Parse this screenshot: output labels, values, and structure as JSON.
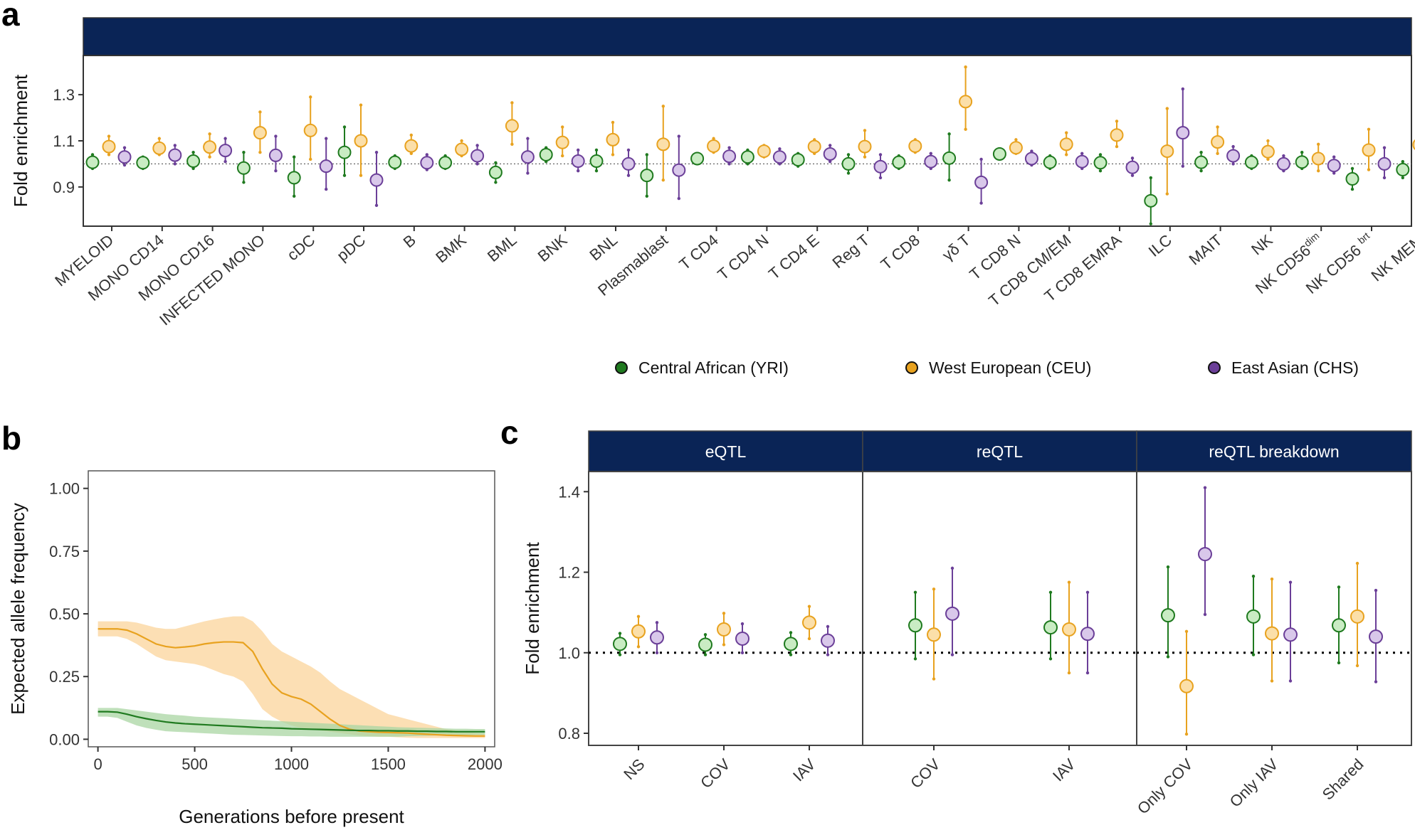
{
  "colors": {
    "YRI": "#1f7a1f",
    "YRI_fill": "#c9ecc3",
    "CEU": "#e8a21f",
    "CEU_fill": "#fbdfa9",
    "CHS": "#6b3f98",
    "CHS_fill": "#d9c8ea",
    "strip": "#0a2456",
    "band_ceu": "#fbd9a7",
    "band_yri": "#a9d6a3"
  },
  "panel_labels": {
    "a": "a",
    "b": "b",
    "c": "c"
  },
  "legend": [
    {
      "key": "YRI",
      "label": "Central African (YRI)"
    },
    {
      "key": "CEU",
      "label": "West European (CEU)"
    },
    {
      "key": "CHS",
      "label": "East Asian (CHS)"
    }
  ],
  "chart_data": [
    {
      "id": "a",
      "type": "scatter",
      "title": "",
      "xlabel": "",
      "ylabel": "Fold enrichment",
      "ylim": [
        0.73,
        1.47
      ],
      "yticks": [
        0.9,
        1.1,
        1.3
      ],
      "ytick_labels": [
        "0.9",
        "1.1",
        "1.3"
      ],
      "reference_line": 1.0,
      "categories": [
        {
          "label": "MYELOID"
        },
        {
          "label": "MONO CD14"
        },
        {
          "label": "MONO CD16"
        },
        {
          "label": "INFECTED MONO"
        },
        {
          "label": "cDC"
        },
        {
          "label": "pDC"
        },
        {
          "label": "B"
        },
        {
          "label": "BMK"
        },
        {
          "label": "BML"
        },
        {
          "label": "BNK"
        },
        {
          "label": "BNL"
        },
        {
          "label": "Plasmablast"
        },
        {
          "label": "T CD4"
        },
        {
          "label": "T CD4 N"
        },
        {
          "label": "T CD4 E"
        },
        {
          "label": "Reg T"
        },
        {
          "label": "T CD8"
        },
        {
          "label": "γδ T"
        },
        {
          "label": "T CD8 N"
        },
        {
          "label": "T CD8 CM/EM"
        },
        {
          "label": "T CD8 EMRA"
        },
        {
          "label": "ILC"
        },
        {
          "label": "MAIT"
        },
        {
          "label": "NK"
        },
        {
          "label": "NK CD56",
          "sup": "dim"
        },
        {
          "label": "NK CD56 ",
          "sup": "brt"
        },
        {
          "label": "NK MEM"
        }
      ],
      "series": [
        {
          "name": "Central African (YRI)",
          "key": "YRI",
          "values": [
            1.007,
            1.005,
            1.012,
            0.982,
            0.94,
            1.05,
            1.007,
            1.005,
            0.963,
            1.04,
            1.012,
            0.95,
            1.023,
            1.03,
            1.018,
            1.0,
            1.007,
            1.025,
            1.043,
            1.007,
            1.005,
            0.84,
            1.007,
            1.007,
            1.008,
            0.935,
            0.975
          ],
          "lower": [
            0.98,
            0.98,
            0.98,
            0.92,
            0.86,
            0.95,
            0.98,
            0.98,
            0.92,
            1.01,
            0.97,
            0.86,
            1.0,
            1.0,
            0.99,
            0.96,
            0.98,
            0.93,
            1.02,
            0.98,
            0.97,
            0.74,
            0.97,
            0.98,
            0.98,
            0.89,
            0.94
          ],
          "upper": [
            1.04,
            1.03,
            1.05,
            1.05,
            1.03,
            1.16,
            1.035,
            1.035,
            1.005,
            1.07,
            1.06,
            1.04,
            1.045,
            1.06,
            1.045,
            1.04,
            1.035,
            1.13,
            1.065,
            1.035,
            1.04,
            0.94,
            1.05,
            1.035,
            1.05,
            0.98,
            1.01
          ]
        },
        {
          "name": "West European (CEU)",
          "key": "CEU",
          "values": [
            1.075,
            1.068,
            1.073,
            1.135,
            1.145,
            1.1,
            1.078,
            1.063,
            1.165,
            1.093,
            1.105,
            1.085,
            1.077,
            1.055,
            1.075,
            1.075,
            1.077,
            1.27,
            1.07,
            1.085,
            1.125,
            1.055,
            1.095,
            1.053,
            1.023,
            1.06,
            1.083
          ],
          "lower": [
            1.04,
            1.04,
            1.03,
            1.05,
            1.02,
            0.95,
            1.045,
            1.035,
            1.085,
            1.035,
            1.04,
            0.93,
            1.05,
            1.03,
            1.045,
            1.03,
            1.05,
            1.15,
            1.045,
            1.04,
            1.075,
            0.87,
            1.045,
            1.02,
            0.97,
            0.975,
            1.03
          ],
          "upper": [
            1.12,
            1.11,
            1.13,
            1.225,
            1.29,
            1.255,
            1.125,
            1.1,
            1.265,
            1.16,
            1.18,
            1.25,
            1.11,
            1.08,
            1.105,
            1.145,
            1.105,
            1.42,
            1.105,
            1.135,
            1.185,
            1.24,
            1.16,
            1.1,
            1.085,
            1.15,
            1.15
          ]
        },
        {
          "name": "East Asian (CHS)",
          "key": "CHS",
          "values": [
            1.03,
            1.038,
            1.058,
            1.037,
            0.99,
            0.93,
            1.005,
            1.035,
            1.03,
            1.012,
            1.0,
            0.973,
            1.033,
            1.03,
            1.043,
            0.988,
            1.01,
            0.92,
            1.023,
            1.01,
            0.985,
            1.135,
            1.035,
            1.0,
            0.993,
            1.0,
            0.972
          ],
          "lower": [
            0.995,
            1.0,
            1.01,
            0.97,
            0.89,
            0.82,
            0.975,
            1.0,
            0.96,
            0.97,
            0.95,
            0.85,
            1.0,
            1.0,
            1.01,
            0.94,
            0.98,
            0.83,
            0.995,
            0.98,
            0.95,
            0.99,
            1.0,
            0.97,
            0.96,
            0.94,
            0.93
          ],
          "upper": [
            1.07,
            1.08,
            1.11,
            1.12,
            1.11,
            1.05,
            1.04,
            1.08,
            1.11,
            1.06,
            1.06,
            1.12,
            1.07,
            1.065,
            1.08,
            1.04,
            1.045,
            1.02,
            1.055,
            1.045,
            1.025,
            1.325,
            1.075,
            1.035,
            1.03,
            1.07,
            1.02
          ]
        }
      ]
    },
    {
      "id": "b",
      "type": "line",
      "title": "",
      "xlabel": "Generations before present",
      "ylabel": "Expected allele frequency",
      "xlim": [
        -50,
        2050
      ],
      "ylim": [
        -0.03,
        1.07
      ],
      "xticks": [
        0,
        500,
        1000,
        1500,
        2000
      ],
      "xtick_labels": [
        "0",
        "500",
        "1000",
        "1500",
        "2000"
      ],
      "yticks": [
        0,
        0.25,
        0.5,
        0.75,
        1.0
      ],
      "ytick_labels": [
        "0.00",
        "0.25",
        "0.50",
        "0.75",
        "1.00"
      ],
      "series": [
        {
          "name": "West European (CEU)",
          "key": "CEU",
          "x": [
            0,
            50,
            100,
            150,
            200,
            250,
            300,
            350,
            400,
            450,
            500,
            550,
            600,
            650,
            700,
            750,
            800,
            850,
            900,
            950,
            1000,
            1050,
            1100,
            1150,
            1200,
            1250,
            1300,
            1350,
            1400,
            1450,
            1500,
            1550,
            1600,
            1650,
            1700,
            1750,
            1800,
            1850,
            1900,
            1950,
            2000
          ],
          "values": [
            0.44,
            0.44,
            0.44,
            0.435,
            0.42,
            0.4,
            0.38,
            0.37,
            0.365,
            0.368,
            0.372,
            0.38,
            0.385,
            0.388,
            0.388,
            0.385,
            0.35,
            0.28,
            0.22,
            0.185,
            0.17,
            0.16,
            0.14,
            0.11,
            0.08,
            0.055,
            0.04,
            0.033,
            0.03,
            0.028,
            0.027,
            0.026,
            0.025,
            0.022,
            0.02,
            0.018,
            0.016,
            0.015,
            0.014,
            0.013,
            0.013
          ],
          "lower": [
            0.41,
            0.41,
            0.41,
            0.4,
            0.38,
            0.355,
            0.33,
            0.315,
            0.31,
            0.305,
            0.3,
            0.29,
            0.275,
            0.26,
            0.25,
            0.23,
            0.18,
            0.12,
            0.09,
            0.07,
            0.055,
            0.045,
            0.04,
            0.035,
            0.03,
            0.025,
            0.02,
            0.015,
            0.012,
            0.01,
            0.01,
            0.008,
            0.006,
            0.005,
            0.005,
            0.005,
            0.005,
            0.005,
            0.005,
            0.005,
            0.005
          ],
          "upper": [
            0.47,
            0.47,
            0.47,
            0.47,
            0.465,
            0.455,
            0.445,
            0.44,
            0.44,
            0.45,
            0.46,
            0.47,
            0.478,
            0.485,
            0.49,
            0.49,
            0.47,
            0.43,
            0.38,
            0.35,
            0.33,
            0.31,
            0.29,
            0.265,
            0.23,
            0.2,
            0.18,
            0.16,
            0.14,
            0.12,
            0.1,
            0.09,
            0.08,
            0.07,
            0.06,
            0.05,
            0.04,
            0.035,
            0.03,
            0.025,
            0.022
          ]
        },
        {
          "name": "Central African (YRI)",
          "key": "YRI",
          "x": [
            0,
            50,
            100,
            150,
            200,
            250,
            300,
            350,
            400,
            450,
            500,
            550,
            600,
            650,
            700,
            750,
            800,
            850,
            900,
            950,
            1000,
            1050,
            1100,
            1150,
            1200,
            1250,
            1300,
            1350,
            1400,
            1450,
            1500,
            1550,
            1600,
            1650,
            1700,
            1750,
            1800,
            1850,
            1900,
            1950,
            2000
          ],
          "values": [
            0.11,
            0.11,
            0.108,
            0.1,
            0.09,
            0.082,
            0.075,
            0.069,
            0.065,
            0.062,
            0.06,
            0.058,
            0.056,
            0.054,
            0.052,
            0.05,
            0.048,
            0.046,
            0.045,
            0.044,
            0.042,
            0.041,
            0.04,
            0.039,
            0.038,
            0.037,
            0.036,
            0.035,
            0.035,
            0.034,
            0.034,
            0.033,
            0.033,
            0.032,
            0.032,
            0.031,
            0.031,
            0.03,
            0.03,
            0.03,
            0.03
          ],
          "lower": [
            0.09,
            0.09,
            0.085,
            0.07,
            0.055,
            0.045,
            0.038,
            0.032,
            0.03,
            0.028,
            0.026,
            0.024,
            0.022,
            0.02,
            0.018,
            0.017,
            0.016,
            0.015,
            0.014,
            0.013,
            0.012,
            0.012,
            0.011,
            0.011,
            0.01,
            0.01,
            0.01,
            0.01,
            0.01,
            0.01,
            0.01,
            0.01,
            0.012,
            0.013,
            0.014,
            0.015,
            0.016,
            0.016,
            0.017,
            0.017,
            0.018
          ],
          "upper": [
            0.125,
            0.125,
            0.125,
            0.12,
            0.115,
            0.11,
            0.105,
            0.1,
            0.097,
            0.094,
            0.09,
            0.088,
            0.086,
            0.084,
            0.082,
            0.08,
            0.078,
            0.076,
            0.074,
            0.072,
            0.07,
            0.068,
            0.066,
            0.064,
            0.062,
            0.06,
            0.058,
            0.056,
            0.054,
            0.052,
            0.05,
            0.048,
            0.047,
            0.046,
            0.045,
            0.044,
            0.043,
            0.042,
            0.042,
            0.041,
            0.041
          ]
        }
      ]
    },
    {
      "id": "c",
      "type": "scatter",
      "title": "",
      "xlabel": "",
      "ylabel": "Fold enrichment",
      "ylim": [
        0.77,
        1.45
      ],
      "yticks": [
        0.8,
        1.0,
        1.2,
        1.4
      ],
      "ytick_labels": [
        "0.8",
        "1.0",
        "1.2",
        "1.4"
      ],
      "reference_line": 1.0,
      "facets": [
        {
          "title": "eQTL",
          "categories": [
            "NS",
            "COV",
            "IAV"
          ],
          "series": [
            {
              "name": "Central African (YRI)",
              "key": "YRI",
              "values": [
                1.022,
                1.02,
                1.022
              ],
              "lower": [
                0.995,
                0.995,
                0.995
              ],
              "upper": [
                1.048,
                1.045,
                1.05
              ]
            },
            {
              "name": "West European (CEU)",
              "key": "CEU",
              "values": [
                1.053,
                1.058,
                1.075
              ],
              "lower": [
                1.015,
                1.02,
                1.035
              ],
              "upper": [
                1.09,
                1.098,
                1.115
              ]
            },
            {
              "name": "East Asian (CHS)",
              "key": "CHS",
              "values": [
                1.038,
                1.035,
                1.03
              ],
              "lower": [
                1.0,
                1.0,
                0.995
              ],
              "upper": [
                1.075,
                1.072,
                1.065
              ]
            }
          ]
        },
        {
          "title": "reQTL",
          "categories": [
            "COV",
            "IAV"
          ],
          "series": [
            {
              "name": "Central African (YRI)",
              "key": "YRI",
              "values": [
                1.068,
                1.063
              ],
              "lower": [
                0.985,
                0.985
              ],
              "upper": [
                1.15,
                1.15
              ]
            },
            {
              "name": "West European (CEU)",
              "key": "CEU",
              "values": [
                1.045,
                1.058
              ],
              "lower": [
                0.935,
                0.95
              ],
              "upper": [
                1.158,
                1.175
              ]
            },
            {
              "name": "East Asian (CHS)",
              "key": "CHS",
              "values": [
                1.097,
                1.047
              ],
              "lower": [
                0.995,
                0.95
              ],
              "upper": [
                1.21,
                1.15
              ]
            }
          ]
        },
        {
          "title": "reQTL breakdown",
          "categories": [
            "Only COV",
            "Only IAV",
            "Shared"
          ],
          "series": [
            {
              "name": "Central African (YRI)",
              "key": "YRI",
              "values": [
                1.093,
                1.09,
                1.068
              ],
              "lower": [
                0.99,
                0.995,
                0.975
              ],
              "upper": [
                1.213,
                1.19,
                1.163
              ]
            },
            {
              "name": "West European (CEU)",
              "key": "CEU",
              "values": [
                0.917,
                1.048,
                1.09
              ],
              "lower": [
                0.798,
                0.93,
                0.968
              ],
              "upper": [
                1.053,
                1.183,
                1.222
              ]
            },
            {
              "name": "East Asian (CHS)",
              "key": "CHS",
              "values": [
                1.245,
                1.045,
                1.04
              ],
              "lower": [
                1.095,
                0.93,
                0.928
              ],
              "upper": [
                1.41,
                1.175,
                1.155
              ]
            }
          ]
        }
      ]
    }
  ]
}
